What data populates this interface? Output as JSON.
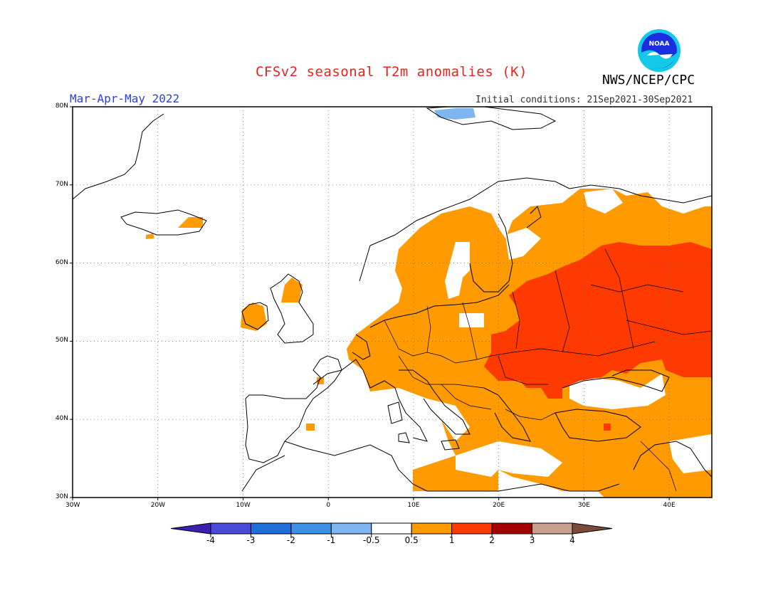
{
  "title": "CFSv2 seasonal T2m anomalies (K)",
  "season": "Mar-Apr-May 2022",
  "initial_conditions": "Initial conditions: 21Sep2021-30Sep2021",
  "agency": "NWS/NCEP/CPC",
  "logo": {
    "text": "NOAA",
    "icon": "noaa-logo-icon"
  },
  "map": {
    "lat_labels": [
      "80N",
      "70N",
      "60N",
      "50N",
      "40N",
      "30N"
    ],
    "lon_labels": [
      "30W",
      "20W",
      "10W",
      "0",
      "10E",
      "20E",
      "30E",
      "40E"
    ],
    "lon_range": [
      -30,
      45
    ],
    "lat_range": [
      30,
      80
    ]
  },
  "colorbar": {
    "labels": [
      "-4",
      "-3",
      "-2",
      "-1",
      "-0.5",
      "0.5",
      "1",
      "2",
      "3",
      "4"
    ],
    "colors": [
      "#3b1fb0",
      "#4a4ad8",
      "#1f6fd8",
      "#3c91e6",
      "#7fb5f0",
      "#ffffff",
      "#ff9a00",
      "#ff3a00",
      "#a40000",
      "#c8a090",
      "#7a4a3a"
    ]
  }
}
